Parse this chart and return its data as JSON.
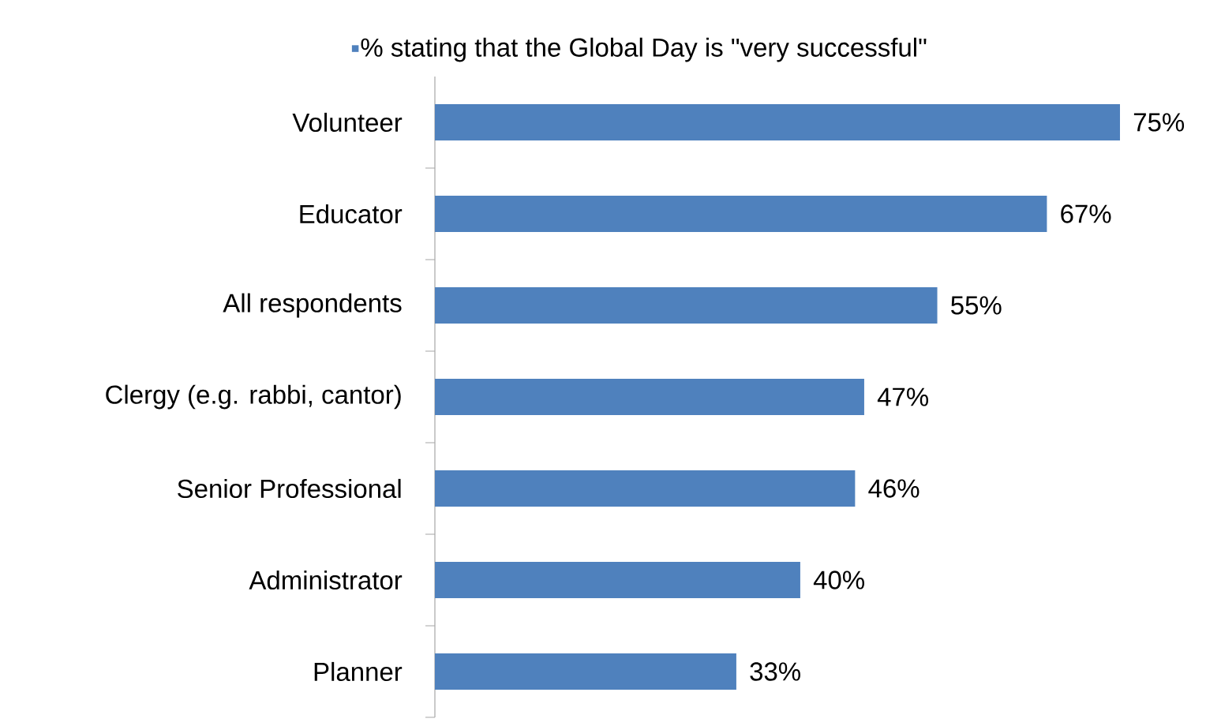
{
  "chart_data": {
    "type": "bar",
    "orientation": "horizontal",
    "categories": [
      "Volunteer",
      "Educator",
      "All respondents",
      "Clergy (e.g. rabbi, cantor)",
      "Senior Professional",
      "Administrator",
      "Planner"
    ],
    "series": [
      {
        "name": "% stating that the Global Day is \"very successful\"",
        "color": "#4f81bd",
        "values": [
          75,
          67,
          55,
          47,
          46,
          40,
          33
        ],
        "value_labels": [
          "75%",
          "67%",
          "55%",
          "47%",
          "46%",
          "40%",
          "33%"
        ]
      }
    ],
    "legend": "top"
  }
}
